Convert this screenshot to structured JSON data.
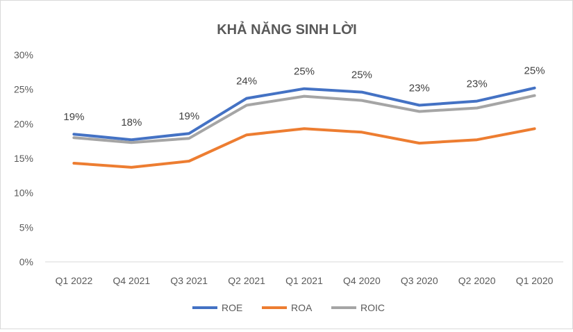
{
  "chart_data": {
    "type": "line",
    "title": "KHẢ NĂNG SINH LỜI",
    "xlabel": "",
    "ylabel": "",
    "ylim": [
      0,
      30
    ],
    "y_ticks": [
      "0%",
      "5%",
      "10%",
      "15%",
      "20%",
      "25%",
      "30%"
    ],
    "grid": false,
    "legend_position": "bottom",
    "categories": [
      "Q1 2022",
      "Q4 2021",
      "Q3 2021",
      "Q2 2021",
      "Q1 2021",
      "Q4 2020",
      "Q3 2020",
      "Q2 2020",
      "Q1 2020"
    ],
    "series": [
      {
        "name": "ROE",
        "color": "#4472c4",
        "values": [
          18.5,
          17.7,
          18.6,
          23.7,
          25.1,
          24.6,
          22.7,
          23.3,
          25.2
        ]
      },
      {
        "name": "ROA",
        "color": "#ed7d31",
        "values": [
          14.3,
          13.7,
          14.6,
          18.4,
          19.3,
          18.8,
          17.2,
          17.7,
          19.3
        ]
      },
      {
        "name": "ROIC",
        "color": "#a5a5a5",
        "values": [
          18.0,
          17.3,
          17.9,
          22.7,
          24.0,
          23.4,
          21.8,
          22.3,
          24.1
        ]
      }
    ],
    "data_labels": {
      "series": "ROE",
      "labels": [
        "19%",
        "18%",
        "19%",
        "24%",
        "25%",
        "25%",
        "23%",
        "23%",
        "25%"
      ]
    }
  },
  "colors": {
    "axis": "#d9d9d9",
    "text": "#595959",
    "title": "#595959"
  }
}
